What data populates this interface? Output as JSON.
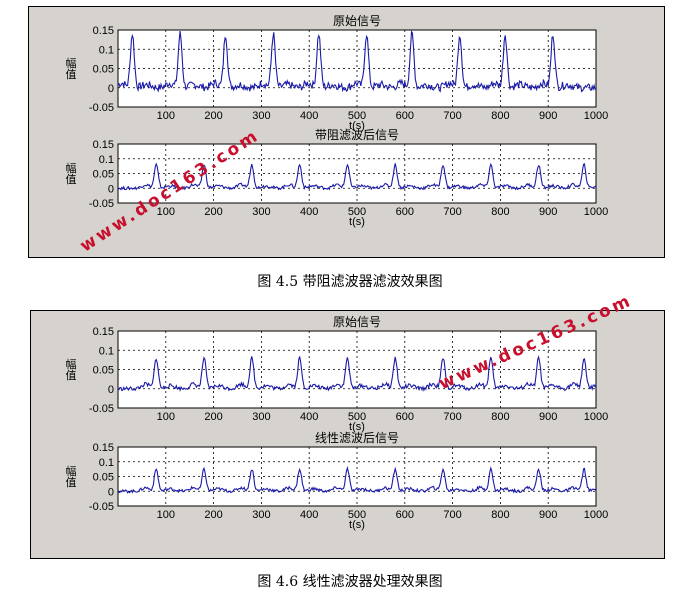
{
  "captions": {
    "fig1": "图 4.5 带阻滤波器滤波效果图",
    "fig2": "图 4.6 线性滤波器处理效果图"
  },
  "watermark": "www.doc163.com",
  "colors": {
    "signal": "#1a1aa8",
    "watermark": "#c8102e",
    "figure_bg": "#d6d3ce"
  },
  "chart_data": [
    {
      "type": "line",
      "figure": 1,
      "panel": "top",
      "title": "原始信号",
      "xlabel": "t(s)",
      "ylabel": "幅值",
      "xlim": [
        0,
        1000
      ],
      "ylim": [
        -0.05,
        0.15
      ],
      "xticks": [
        100,
        200,
        300,
        400,
        500,
        600,
        700,
        800,
        900,
        1000
      ],
      "yticks": [
        -0.05,
        0,
        0.05,
        0.1,
        0.15
      ],
      "ytick_labels": [
        "-0.05",
        "0",
        "0.05",
        "0.1",
        "0.15"
      ],
      "xtick_labels": [
        "100",
        "200",
        "300",
        "400",
        "500",
        "600",
        "700",
        "800",
        "900",
        "1000"
      ],
      "grid": true,
      "series": [
        {
          "peaks_t": [
            30,
            130,
            225,
            325,
            420,
            520,
            615,
            715,
            810,
            910
          ],
          "peak_value": 0.14,
          "baseline": 0,
          "noise": 0.01
        }
      ]
    },
    {
      "type": "line",
      "figure": 1,
      "panel": "bottom",
      "title": "带阻滤波后信号",
      "xlabel": "t(s)",
      "ylabel": "幅值",
      "xlim": [
        0,
        1000
      ],
      "ylim": [
        -0.05,
        0.15
      ],
      "xticks": [
        100,
        200,
        300,
        400,
        500,
        600,
        700,
        800,
        900,
        1000
      ],
      "yticks": [
        -0.05,
        0,
        0.05,
        0.1,
        0.15
      ],
      "ytick_labels": [
        "-0.05",
        "0",
        "0.05",
        "0.1",
        "0.15"
      ],
      "xtick_labels": [
        "100",
        "200",
        "300",
        "400",
        "500",
        "600",
        "700",
        "800",
        "900",
        "1000"
      ],
      "grid": true,
      "series": [
        {
          "peaks_t": [
            80,
            180,
            280,
            380,
            480,
            580,
            680,
            780,
            880,
            975
          ],
          "peak_value": 0.08,
          "baseline": 0,
          "noise": 0.005
        }
      ]
    },
    {
      "type": "line",
      "figure": 2,
      "panel": "top",
      "title": "原始信号",
      "xlabel": "t(s)",
      "ylabel": "幅值",
      "xlim": [
        0,
        1000
      ],
      "ylim": [
        -0.05,
        0.15
      ],
      "xticks": [
        100,
        200,
        300,
        400,
        500,
        600,
        700,
        800,
        900,
        1000
      ],
      "yticks": [
        -0.05,
        0,
        0.05,
        0.1,
        0.15
      ],
      "ytick_labels": [
        "-0.05",
        "0",
        "0.05",
        "0.1",
        "0.15"
      ],
      "xtick_labels": [
        "100",
        "200",
        "300",
        "400",
        "500",
        "600",
        "700",
        "800",
        "900",
        "1000"
      ],
      "grid": true,
      "series": [
        {
          "peaks_t": [
            80,
            180,
            280,
            380,
            480,
            580,
            680,
            780,
            880,
            975
          ],
          "peak_value": 0.08,
          "baseline": 0,
          "noise": 0.005
        }
      ]
    },
    {
      "type": "line",
      "figure": 2,
      "panel": "bottom",
      "title": "线性滤波后信号",
      "xlabel": "t(s)",
      "ylabel": "幅值",
      "xlim": [
        0,
        1000
      ],
      "ylim": [
        -0.05,
        0.15
      ],
      "xticks": [
        100,
        200,
        300,
        400,
        500,
        600,
        700,
        800,
        900,
        1000
      ],
      "yticks": [
        -0.05,
        0,
        0.05,
        0.1,
        0.15
      ],
      "ytick_labels": [
        "-0.05",
        "0",
        "0.05",
        "0.1",
        "0.15"
      ],
      "xtick_labels": [
        "100",
        "200",
        "300",
        "400",
        "500",
        "600",
        "700",
        "800",
        "900",
        "1000"
      ],
      "grid": true,
      "series": [
        {
          "peaks_t": [
            80,
            180,
            280,
            380,
            480,
            580,
            680,
            780,
            880,
            975
          ],
          "peak_value": 0.075,
          "baseline": 0,
          "noise": 0.005
        }
      ]
    }
  ]
}
